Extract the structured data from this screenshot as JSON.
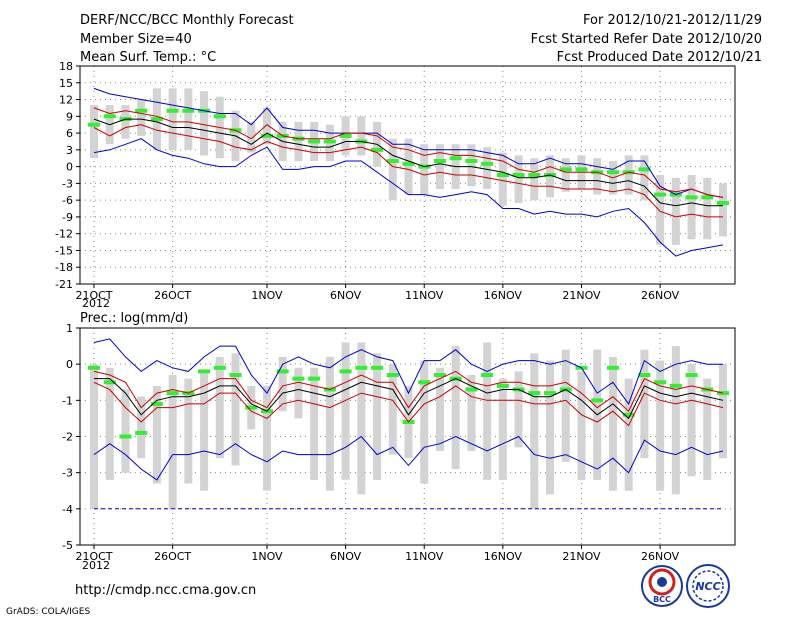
{
  "header": {
    "title_left": "DERF/NCC/BCC Monthly Forecast",
    "member_size": "Member Size=40",
    "variable": "Mean Surf. Temp.: °C",
    "period": "For 2012/10/21-2012/11/29",
    "fcst_started": "Fcst Started Refer Date 2012/10/20",
    "fcst_produced": "Fcst Produced Date 2012/10/21"
  },
  "footer": {
    "url": "http://cmdp.ncc.cma.gov.cn",
    "grads": "GrADS: COLA/IGES",
    "logo_bcc": "BCC",
    "logo_ncc": "NCC"
  },
  "colors": {
    "max_min": "#0000cc",
    "spread": "#cc0000",
    "mean": "#000000",
    "obs": "#33ee33",
    "box": "#d3d3d3",
    "grid": "#888888"
  },
  "chart_data": [
    {
      "type": "line",
      "title": "Mean Surf. Temp.: °C",
      "xlabel": "",
      "ylabel": "",
      "x_ticks": [
        "21OCT",
        "26OCT",
        "1NOV",
        "6NOV",
        "11NOV",
        "16NOV",
        "21NOV",
        "26NOV"
      ],
      "x_tick_days": [
        0,
        5,
        11,
        16,
        21,
        26,
        31,
        36
      ],
      "x_year": "2012",
      "ylim": [
        -21,
        18
      ],
      "y_ticks": [
        18,
        15,
        12,
        9,
        6,
        3,
        0,
        -3,
        -6,
        -9,
        -12,
        -15,
        -18,
        -21
      ],
      "grid": true,
      "series": [
        {
          "name": "max",
          "values": [
            14,
            13,
            12.5,
            12,
            11.5,
            11,
            10.5,
            10,
            9.5,
            9.5,
            7.5,
            10.5,
            7,
            6.5,
            6.5,
            6,
            6,
            6,
            6,
            4,
            4,
            3,
            3,
            3,
            3,
            2.5,
            2,
            0.5,
            0.5,
            1.5,
            0.5,
            0.5,
            0,
            -0.5,
            1,
            1,
            -3.5,
            -5,
            -4,
            -5,
            -5.5
          ]
        },
        {
          "name": "upper",
          "values": [
            10.5,
            9.5,
            10,
            9.5,
            9,
            8,
            8,
            7.5,
            7,
            6.5,
            5,
            7.5,
            5.5,
            5,
            5,
            5,
            6,
            6,
            5.5,
            3.5,
            3,
            2,
            2.5,
            2,
            2,
            1.5,
            1,
            -0.5,
            -1,
            0,
            -1,
            -1,
            -1,
            -2,
            -1,
            -1.5,
            -4,
            -4.5,
            -4,
            -5,
            -5.5
          ]
        },
        {
          "name": "mean",
          "values": [
            8.5,
            7.5,
            8.5,
            8.5,
            8,
            7,
            7,
            6.5,
            6,
            5.5,
            4,
            6,
            4.5,
            4,
            3.5,
            3.5,
            4.5,
            4.5,
            4,
            2,
            1,
            0,
            0.5,
            0,
            0,
            -0.5,
            -1,
            -2,
            -2,
            -1.5,
            -2.5,
            -2.5,
            -2.5,
            -3,
            -2.5,
            -3.5,
            -6.5,
            -7,
            -6.5,
            -7,
            -7
          ]
        },
        {
          "name": "lower",
          "values": [
            7,
            5.5,
            7,
            7.5,
            6.5,
            6,
            5.5,
            5,
            4.5,
            3.5,
            3,
            4.5,
            3.5,
            3,
            2.5,
            2.5,
            3,
            3.5,
            2.5,
            0,
            -0.5,
            -1.5,
            -1,
            -1.5,
            -1.5,
            -2,
            -2.5,
            -3,
            -3.5,
            -3.5,
            -4,
            -4,
            -4,
            -4.5,
            -4,
            -5,
            -8,
            -9,
            -8.5,
            -9,
            -9
          ]
        },
        {
          "name": "min",
          "values": [
            2.5,
            3,
            4,
            5,
            3,
            2,
            1.5,
            0.5,
            0,
            0,
            2,
            3.5,
            -0.5,
            -0.5,
            0,
            0,
            1,
            1,
            -1,
            -3,
            -5,
            -5,
            -5.5,
            -5,
            -4.5,
            -5,
            -7.5,
            -7.5,
            -8.5,
            -8,
            -8.5,
            -8.5,
            -9,
            -8,
            -7.5,
            -10,
            -13.5,
            -16,
            -15,
            -14.5,
            -14
          ]
        },
        {
          "name": "observed",
          "values": [
            7.5,
            9,
            8.5,
            10,
            8.5,
            10,
            10,
            10,
            9,
            6.5,
            null,
            5.5,
            5.5,
            5,
            4.5,
            4.5,
            5.5,
            4.5,
            3,
            1,
            0.5,
            0,
            1,
            1.5,
            1,
            0.5,
            -1.5,
            -1.5,
            -1.5,
            -1.5,
            -0.5,
            -0.5,
            -1,
            -1,
            -1,
            -0.5,
            -5,
            -5,
            -5.5,
            -5.5,
            -6.5
          ]
        },
        {
          "name": "box_top",
          "values": [
            11,
            11,
            11,
            12,
            14,
            14,
            14,
            13.5,
            12.5,
            10,
            8,
            10.5,
            8,
            8,
            8,
            7.5,
            9,
            9,
            8,
            5,
            5,
            4,
            4,
            4,
            4,
            3.5,
            2.5,
            2,
            1.5,
            2,
            1.5,
            2,
            1.5,
            1,
            2,
            2,
            -1.5,
            -2,
            -1.5,
            -2,
            -3
          ]
        },
        {
          "name": "box_bottom",
          "values": [
            1.5,
            4,
            5,
            5.5,
            3,
            3,
            3,
            2,
            1.5,
            1,
            2.5,
            4,
            1,
            1,
            1,
            1,
            2,
            2,
            0,
            -6,
            -5,
            -5,
            -4,
            -4,
            -3.5,
            -4,
            -7,
            -6.5,
            -6,
            -5.5,
            -4.5,
            -4,
            -5,
            -5,
            -5,
            -6,
            -14,
            -14,
            -13,
            -13,
            -12.5
          ]
        }
      ]
    },
    {
      "type": "line",
      "title": "Prec.: log(mm/d)",
      "xlabel": "",
      "ylabel": "",
      "x_ticks": [
        "21OCT",
        "26OCT",
        "1NOV",
        "6NOV",
        "11NOV",
        "16NOV",
        "21NOV",
        "26NOV"
      ],
      "x_tick_days": [
        0,
        5,
        11,
        16,
        21,
        26,
        31,
        36
      ],
      "x_year": "2012",
      "ylim": [
        -5,
        1
      ],
      "y_ticks": [
        1,
        0,
        -1,
        -2,
        -3,
        -4,
        -5
      ],
      "grid": true,
      "series": [
        {
          "name": "max",
          "values": [
            0.6,
            0.7,
            0.2,
            -0.2,
            0.1,
            -0.1,
            -0.2,
            0.2,
            0.5,
            0.5,
            -0.3,
            -0.8,
            0,
            0.2,
            0,
            -0.1,
            0.2,
            0.4,
            0.2,
            0.1,
            -0.8,
            0.1,
            0.1,
            0.4,
            0,
            -0.2,
            0,
            0.1,
            0.1,
            0,
            0.1,
            -0.1,
            -0.8,
            -0.5,
            -1.1,
            0.1,
            -0.2,
            0,
            0.1,
            0,
            0
          ]
        },
        {
          "name": "upper",
          "values": [
            -0.2,
            -0.3,
            -0.5,
            -1.2,
            -0.8,
            -0.7,
            -0.8,
            -0.6,
            -0.4,
            -0.4,
            -1,
            -1.2,
            -0.6,
            -0.5,
            -0.6,
            -0.7,
            -0.5,
            -0.3,
            -0.5,
            -0.5,
            -1.2,
            -0.6,
            -0.4,
            -0.2,
            -0.5,
            -0.6,
            -0.5,
            -0.5,
            -0.6,
            -0.6,
            -0.5,
            -0.8,
            -1.2,
            -0.9,
            -1.3,
            -0.4,
            -0.6,
            -0.7,
            -0.6,
            -0.7,
            -0.8
          ]
        },
        {
          "name": "mean",
          "values": [
            -0.4,
            -0.4,
            -0.8,
            -1.4,
            -1,
            -0.9,
            -0.9,
            -0.8,
            -0.6,
            -0.6,
            -1.1,
            -1.3,
            -0.8,
            -0.7,
            -0.8,
            -0.9,
            -0.7,
            -0.5,
            -0.6,
            -0.7,
            -1.4,
            -0.8,
            -0.6,
            -0.4,
            -0.6,
            -0.8,
            -0.7,
            -0.7,
            -0.9,
            -0.9,
            -0.7,
            -1,
            -1.4,
            -1.1,
            -1.5,
            -0.6,
            -0.8,
            -0.9,
            -0.8,
            -0.9,
            -1
          ]
        },
        {
          "name": "lower",
          "values": [
            -0.5,
            -0.7,
            -1.2,
            -1.6,
            -1.2,
            -1.2,
            -1.1,
            -1.1,
            -0.8,
            -0.8,
            -1.3,
            -1.5,
            -1.1,
            -1,
            -1.1,
            -1.2,
            -1,
            -0.8,
            -0.9,
            -1,
            -1.6,
            -1.1,
            -0.9,
            -0.6,
            -0.9,
            -1,
            -1,
            -1,
            -1.1,
            -1.1,
            -1,
            -1.4,
            -1.6,
            -1.3,
            -1.7,
            -0.8,
            -1,
            -1.1,
            -1,
            -1.1,
            -1.2
          ]
        },
        {
          "name": "min",
          "values": [
            -2.5,
            -2.2,
            -2.5,
            -2.9,
            -3.2,
            -2.5,
            -2.5,
            -2.4,
            -2.5,
            -2.2,
            -2.5,
            -2.7,
            -2.4,
            -2.5,
            -2.5,
            -2.5,
            -2.3,
            -2,
            -2.5,
            -2.3,
            -2.8,
            -2.3,
            -2.2,
            -2,
            -2.2,
            -2.4,
            -2.2,
            -2,
            -2.5,
            -2.6,
            -2.5,
            -2.7,
            -2.9,
            -2.6,
            -3,
            -2.1,
            -2.4,
            -2.5,
            -2.3,
            -2.5,
            -2.4
          ]
        },
        {
          "name": "bottom",
          "values": [
            -4,
            -4,
            -4,
            -4,
            -4,
            -4,
            -4,
            -4,
            -4,
            -4,
            -4,
            -4,
            -4,
            -4,
            -4,
            -4,
            -4,
            -4,
            -4,
            -4,
            -4,
            -4,
            -4,
            -4,
            -4,
            -4,
            -4,
            -4,
            -4,
            -4,
            -4,
            -4,
            -4,
            -4,
            -4,
            -4,
            -4,
            -4,
            -4,
            -4,
            -4
          ]
        },
        {
          "name": "observed",
          "values": [
            -0.1,
            -0.5,
            -2,
            -1.9,
            -1.1,
            -0.8,
            -0.8,
            -0.2,
            -0.1,
            -0.3,
            -1.2,
            -1.3,
            -0.2,
            -0.4,
            -0.4,
            -0.7,
            -0.2,
            -0.1,
            -0.1,
            -0.3,
            -1.6,
            -0.5,
            -0.3,
            -0.4,
            -0.7,
            -0.3,
            -0.6,
            -0.7,
            -0.8,
            -0.8,
            -0.7,
            -0.1,
            -1,
            -0.1,
            -1.4,
            -0.3,
            -0.5,
            -0.6,
            -0.3,
            -0.7,
            -0.8
          ]
        },
        {
          "name": "box_top",
          "values": [
            0,
            -0.1,
            -0.7,
            -0.9,
            -0.6,
            -0.3,
            -0.4,
            -0.2,
            0.2,
            0.3,
            -0.6,
            -0.6,
            0.2,
            -0.1,
            -0.1,
            0.2,
            0.6,
            0.6,
            0.3,
            0,
            -0.6,
            0.1,
            -0.1,
            0.5,
            -0.3,
            0.6,
            -0.4,
            -0.2,
            0.3,
            0.1,
            0.4,
            -0.2,
            0.4,
            0.2,
            -0.4,
            0.4,
            0.1,
            0.5,
            0,
            -0.4,
            0
          ]
        },
        {
          "name": "box_bottom",
          "values": [
            -4,
            -3.2,
            -3,
            -2.6,
            -3.3,
            -4,
            -3.3,
            -3.5,
            -2.6,
            -2.8,
            -1.8,
            -3.5,
            -1.3,
            -1.5,
            -3.2,
            -3.5,
            -3.2,
            -3.6,
            -3.2,
            -2.5,
            -2.6,
            -3.3,
            -2.4,
            -2.9,
            -2.4,
            -3.2,
            -3.2,
            -2.3,
            -4,
            -3.6,
            -2.7,
            -3.2,
            -3.2,
            -3.5,
            -3.5,
            -2.6,
            -3.5,
            -3.6,
            -3.1,
            -3.2,
            -2.6
          ]
        }
      ]
    }
  ]
}
